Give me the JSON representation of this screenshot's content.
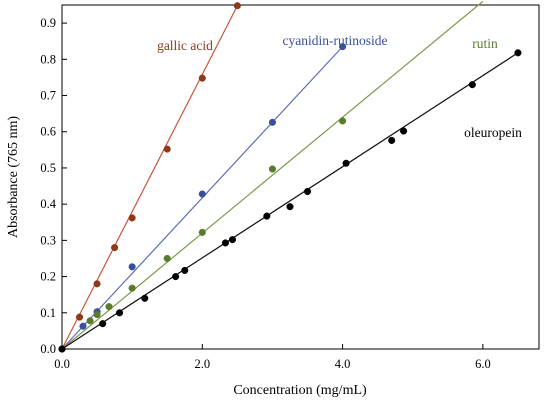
{
  "chart_data": {
    "type": "scatter",
    "title": "",
    "xlabel": "Concentration (mg/mL)",
    "ylabel": "Absorbance (765 nm)",
    "xlim": [
      0,
      6.8
    ],
    "ylim": [
      0,
      0.95
    ],
    "grid": false,
    "legend": "inline labels",
    "x_ticks": [
      0,
      2,
      4,
      6
    ],
    "x_tick_labels": [
      "0.0",
      "2.0",
      "4.0",
      "6.0"
    ],
    "y_ticks": [
      0,
      0.1,
      0.2,
      0.3,
      0.4,
      0.5,
      0.6,
      0.7,
      0.8,
      0.9
    ],
    "y_tick_labels": [
      "0.0",
      "0.1",
      "0.2",
      "0.3",
      "0.4",
      "0.5",
      "0.6",
      "0.7",
      "0.8",
      "0.9"
    ],
    "series": [
      {
        "name": "gallic acid",
        "color": "#8b3a1a",
        "line_color": "#c8563a",
        "x": [
          0,
          0.25,
          0.5,
          0.75,
          1.0,
          1.5,
          2.0,
          2.5
        ],
        "y": [
          0,
          0.088,
          0.18,
          0.28,
          0.362,
          0.552,
          0.748,
          0.948
        ],
        "fit": [
          [
            0,
            0
          ],
          [
            2.5,
            0.948
          ]
        ]
      },
      {
        "name": "cyanidin-rutinoside",
        "color": "#3a4f9a",
        "line_color": "#5a6eb8",
        "x": [
          0,
          0.3,
          0.5,
          1.0,
          2.0,
          3.0,
          4.0
        ],
        "y": [
          0,
          0.063,
          0.103,
          0.227,
          0.428,
          0.626,
          0.835
        ],
        "fit": [
          [
            0,
            0
          ],
          [
            4.0,
            0.835
          ]
        ]
      },
      {
        "name": "rutin",
        "color": "#5a7a2e",
        "line_color": "#7a9a4a",
        "x": [
          0,
          0.4,
          0.5,
          0.67,
          1.0,
          1.5,
          2.0,
          3.0,
          4.0
        ],
        "y": [
          0,
          0.078,
          0.095,
          0.117,
          0.168,
          0.25,
          0.322,
          0.497,
          0.63
        ],
        "fit": [
          [
            0,
            0
          ],
          [
            6.0,
            0.96
          ]
        ]
      },
      {
        "name": "oleuropein",
        "color": "#000000",
        "line_color": "#111111",
        "x": [
          0,
          0.58,
          0.82,
          1.18,
          1.62,
          1.75,
          2.33,
          2.43,
          2.92,
          3.25,
          3.5,
          4.05,
          4.7,
          4.87,
          5.85,
          6.5
        ],
        "y": [
          0,
          0.07,
          0.1,
          0.14,
          0.2,
          0.217,
          0.293,
          0.302,
          0.367,
          0.393,
          0.435,
          0.513,
          0.576,
          0.602,
          0.73,
          0.818
        ],
        "fit": [
          [
            0,
            0
          ],
          [
            6.5,
            0.818
          ]
        ]
      }
    ]
  }
}
